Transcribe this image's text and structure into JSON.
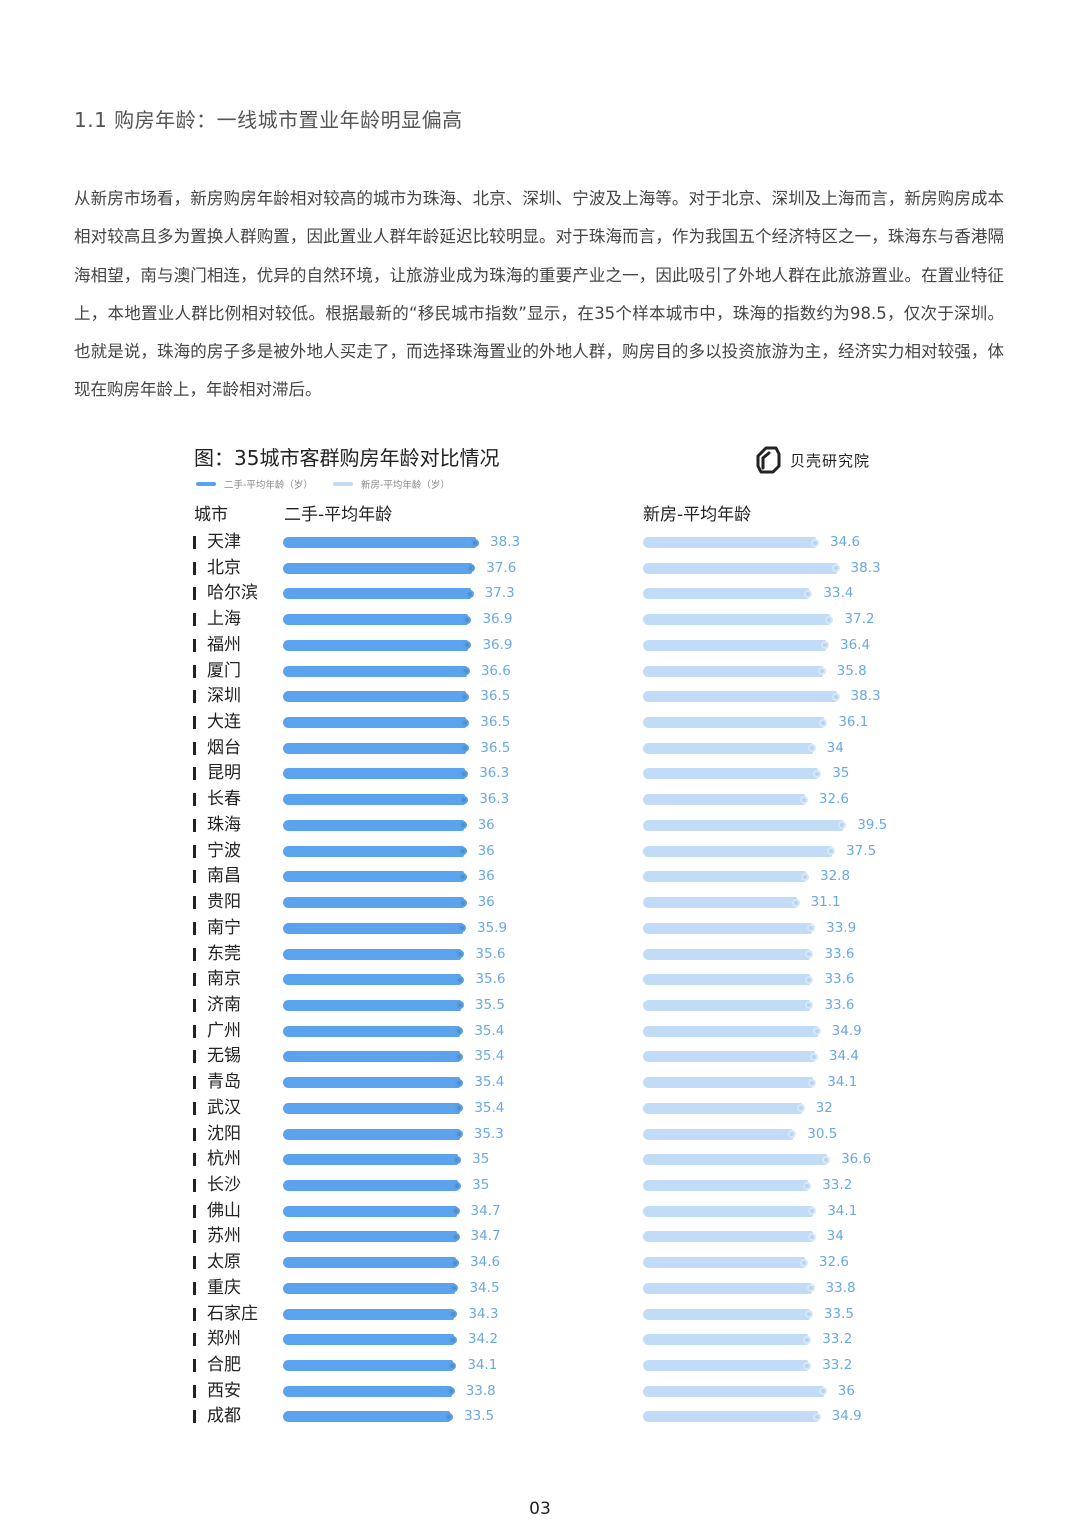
{
  "section": {
    "title": "1.1 购房年龄：一线城市置业年龄明显偏高",
    "paragraph": "从新房市场看，新房购房年龄相对较高的城市为珠海、北京、深圳、宁波及上海等。对于北京、深圳及上海而言，新房购房成本相对较高且多为置换人群购置，因此置业人群年龄延迟比较明显。对于珠海而言，作为我国五个经济特区之一，珠海东与香港隔海相望，南与澳门相连，优异的自然环境，让旅游业成为珠海的重要产业之一，因此吸引了外地人群在此旅游置业。在置业特征上，本地置业人群比例相对较低。根据最新的“移民城市指数”显示，在35个样本城市中，珠海的指数约为98.5，仅次于深圳。也就是说，珠海的房子多是被外地人买走了，而选择珠海置业的外地人群，购房目的多以投资旅游为主，经济实力相对较强，体现在购房年龄上，年龄相对滞后。"
  },
  "logo": {
    "text": "贝壳研究院",
    "icon": "beike-logo-icon"
  },
  "page_number": "03",
  "colors": {
    "old_bar": "#5ba3ec",
    "new_bar": "#c2dcf8",
    "value_text": "#6aa9e6"
  },
  "chart_data": {
    "type": "bar",
    "orientation": "horizontal",
    "title": "图：35城市客群购房年龄对比情况",
    "legend": [
      "二手-平均年龄（岁）",
      "新房-平均年龄（岁）"
    ],
    "legend_position": "top-left",
    "column_headers": {
      "city": "城市",
      "old": "二手-平均年龄",
      "new": "新房-平均年龄"
    },
    "grid": false,
    "categories": [
      "天津",
      "北京",
      "哈尔滨",
      "上海",
      "福州",
      "厦门",
      "深圳",
      "大连",
      "烟台",
      "昆明",
      "长春",
      "珠海",
      "宁波",
      "南昌",
      "贵阳",
      "南宁",
      "东莞",
      "南京",
      "济南",
      "广州",
      "无锡",
      "青岛",
      "武汉",
      "沈阳",
      "杭州",
      "长沙",
      "佛山",
      "苏州",
      "太原",
      "重庆",
      "石家庄",
      "郑州",
      "合肥",
      "西安",
      "成都"
    ],
    "series": [
      {
        "name": "二手-平均年龄（岁）",
        "values": [
          38.3,
          37.6,
          37.3,
          36.9,
          36.9,
          36.6,
          36.5,
          36.5,
          36.5,
          36.3,
          36.3,
          36,
          36,
          36,
          36,
          35.9,
          35.6,
          35.6,
          35.5,
          35.4,
          35.4,
          35.4,
          35.4,
          35.3,
          35,
          35,
          34.7,
          34.7,
          34.6,
          34.5,
          34.3,
          34.2,
          34.1,
          33.8,
          33.5
        ]
      },
      {
        "name": "新房-平均年龄（岁）",
        "values": [
          34.6,
          38.3,
          33.4,
          37.2,
          36.4,
          35.8,
          38.3,
          36.1,
          34,
          35,
          32.6,
          39.5,
          37.5,
          32.8,
          31.1,
          33.9,
          33.6,
          33.6,
          33.6,
          34.9,
          34.4,
          34.1,
          32,
          30.5,
          36.6,
          33.2,
          34.1,
          34,
          32.6,
          33.8,
          33.5,
          33.2,
          33.2,
          36,
          34.9
        ]
      }
    ]
  }
}
